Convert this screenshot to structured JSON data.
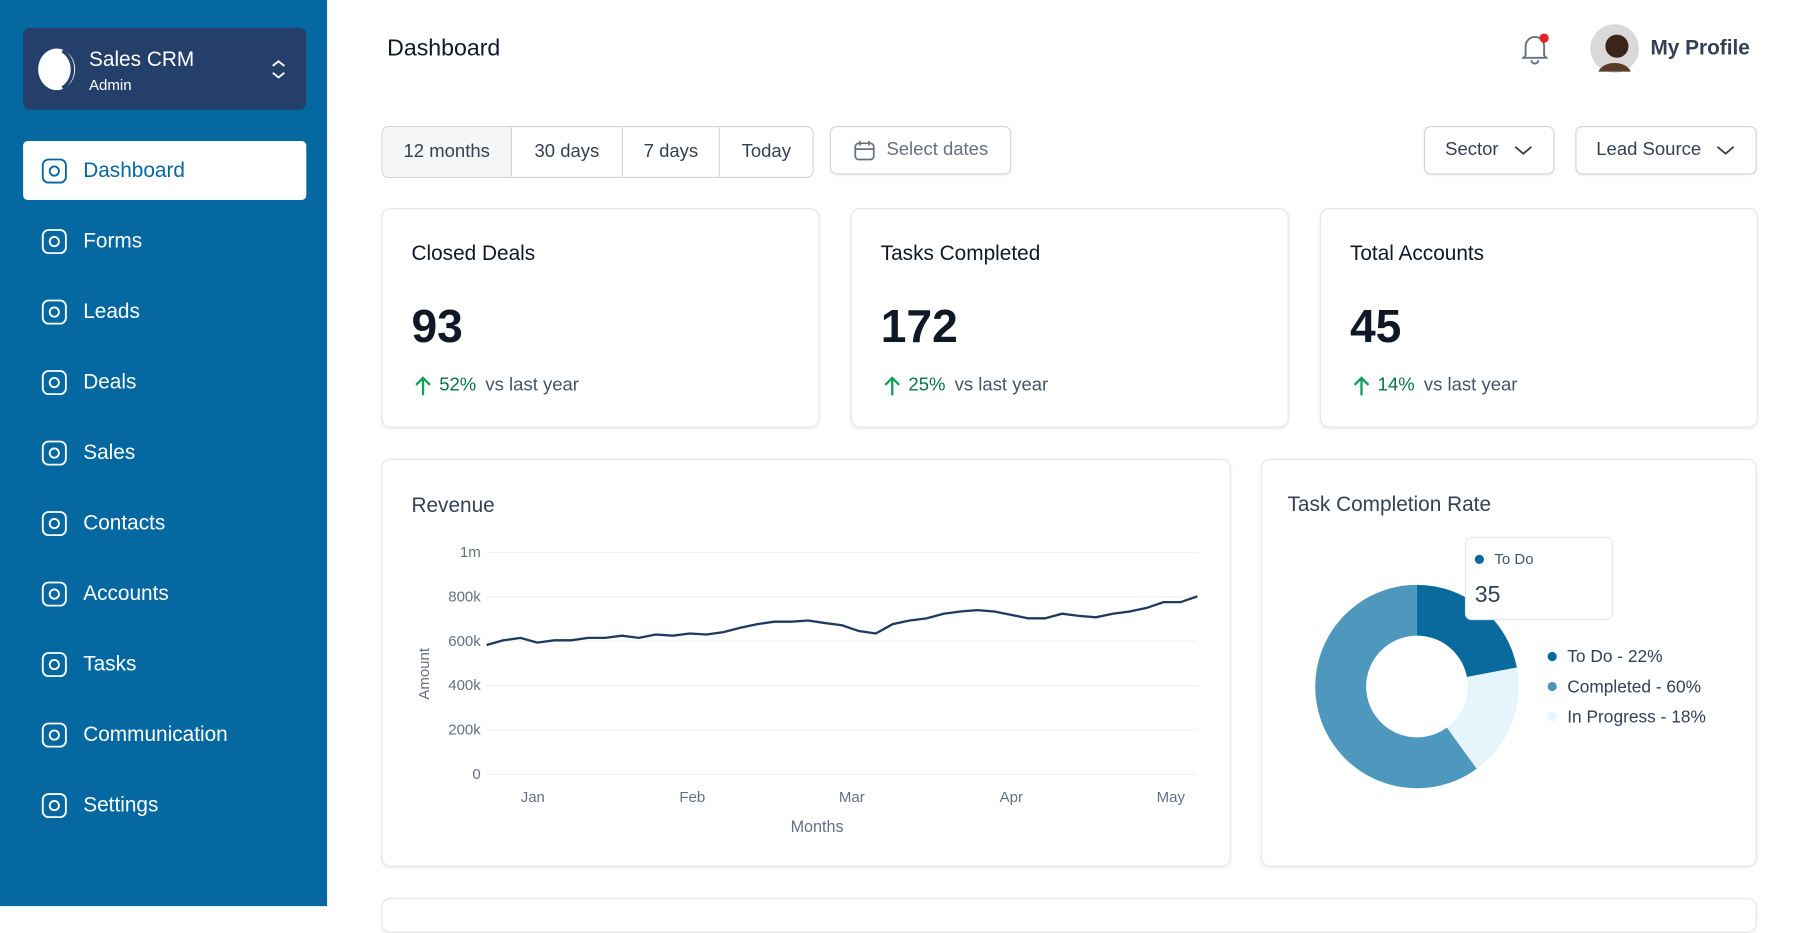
{
  "sidebar": {
    "brand": {
      "name": "Sales CRM",
      "role": "Admin"
    },
    "nav": [
      "Dashboard",
      "Forms",
      "Leads",
      "Deals",
      "Sales",
      "Contacts",
      "Accounts",
      "Tasks",
      "Communication",
      "Settings"
    ]
  },
  "header": {
    "title": "Dashboard",
    "profile": "My Profile"
  },
  "filters": {
    "ranges": [
      "12 months",
      "30 days",
      "7 days",
      "Today"
    ],
    "date_picker": "Select dates",
    "dropdowns": [
      "Sector",
      "Lead Source"
    ]
  },
  "stats": [
    {
      "title": "Closed Deals",
      "value": 93,
      "change": "52%",
      "note": "vs last year"
    },
    {
      "title": "Tasks Completed",
      "value": 172,
      "change": "25%",
      "note": "vs last year"
    },
    {
      "title": "Total Accounts",
      "value": 45,
      "change": "14%",
      "note": "vs last year"
    }
  ],
  "revenue_chart": {
    "type": "line",
    "title": "Revenue",
    "y_label": "Amount",
    "x_label": "Months",
    "color": "#1e3a5f",
    "x_tick_labels": [
      "Jan",
      "Feb",
      "Mar",
      "Apr",
      "May"
    ],
    "values": [
      583000,
      604000,
      615000,
      594000,
      604000,
      604000,
      615000,
      615000,
      625000,
      615000,
      630000,
      625000,
      635000,
      630000,
      641000,
      661000,
      677000,
      688000,
      688000,
      693000,
      682000,
      672000,
      646000,
      635000,
      677000,
      693000,
      703000,
      724000,
      734000,
      740000,
      734000,
      719000,
      703000,
      703000,
      724000,
      714000,
      708000,
      724000,
      734000,
      750000,
      776000,
      776000,
      802000
    ],
    "ylim": [
      0,
      1000000
    ],
    "yticks": [
      {
        "value": 0,
        "label": "0"
      },
      {
        "value": 200000,
        "label": "200k"
      },
      {
        "value": 400000,
        "label": "400k"
      },
      {
        "value": 600000,
        "label": "600k"
      },
      {
        "value": 800000,
        "label": "800k"
      },
      {
        "value": 1000000,
        "label": "1m"
      }
    ],
    "grid": true
  },
  "task_chart": {
    "type": "donut",
    "title": "Task Completion Rate",
    "series": [
      {
        "name": "To Do",
        "color": "#0a6a9e",
        "value": 22,
        "legend": "To Do - 22%"
      },
      {
        "name": "In Progress",
        "color": "#e6f5fc",
        "value": 18,
        "legend": "In Progress - 18%"
      },
      {
        "name": "Completed",
        "color": "#4e97bd",
        "value": 60,
        "legend": "Completed - 60%"
      }
    ],
    "tooltip": {
      "label": "To Do",
      "value": 35
    }
  }
}
